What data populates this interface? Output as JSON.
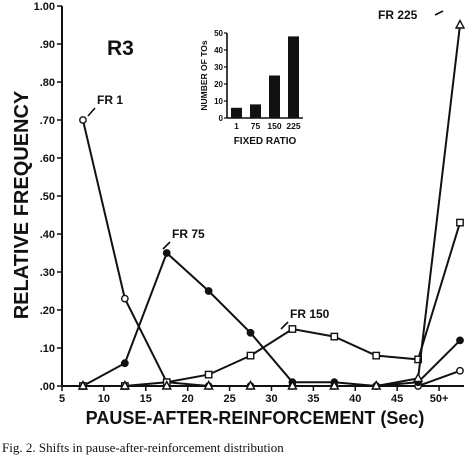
{
  "chart_data": {
    "type": "line",
    "panel_label": "R3",
    "xlabel": "PAUSE-AFTER-REINFORCEMENT (Sec)",
    "ylabel": "RELATIVE FREQUENCY",
    "xlim": [
      5,
      52.5
    ],
    "ylim": [
      0,
      1.0
    ],
    "x_ticks": [
      {
        "value": 5,
        "label": "5"
      },
      {
        "value": 10,
        "label": "10"
      },
      {
        "value": 15,
        "label": "15"
      },
      {
        "value": 20,
        "label": "20"
      },
      {
        "value": 25,
        "label": "25"
      },
      {
        "value": 30,
        "label": "30"
      },
      {
        "value": 35,
        "label": "35"
      },
      {
        "value": 40,
        "label": "40"
      },
      {
        "value": 45,
        "label": "45"
      },
      {
        "value": 50,
        "label": "50+"
      }
    ],
    "y_ticks": [
      {
        "value": 0.0,
        "label": ".00"
      },
      {
        "value": 0.1,
        "label": ".10"
      },
      {
        "value": 0.2,
        "label": ".20"
      },
      {
        "value": 0.3,
        "label": ".30"
      },
      {
        "value": 0.4,
        "label": ".40"
      },
      {
        "value": 0.5,
        "label": ".50"
      },
      {
        "value": 0.6,
        "label": ".60"
      },
      {
        "value": 0.7,
        "label": ".70"
      },
      {
        "value": 0.8,
        "label": ".80"
      },
      {
        "value": 0.9,
        "label": ".90"
      },
      {
        "value": 1.0,
        "label": "1.00"
      }
    ],
    "x": [
      7.5,
      12.5,
      17.5,
      22.5,
      27.5,
      32.5,
      37.5,
      42.5,
      47.5,
      52.5
    ],
    "series": [
      {
        "name": "FR 1",
        "marker": "circle-open",
        "values": [
          0.7,
          0.23,
          0.01,
          0.0,
          0.0,
          0.0,
          0.0,
          0.0,
          0.0,
          0.04
        ]
      },
      {
        "name": "FR 75",
        "marker": "circle-filled",
        "values": [
          0.0,
          0.06,
          0.35,
          0.25,
          0.14,
          0.01,
          0.01,
          0.0,
          0.01,
          0.12
        ]
      },
      {
        "name": "FR 150",
        "marker": "square-open",
        "values": [
          0.0,
          0.0,
          0.01,
          0.03,
          0.08,
          0.15,
          0.13,
          0.08,
          0.07,
          0.43
        ]
      },
      {
        "name": "FR 225",
        "marker": "triangle-open",
        "values": [
          0.0,
          0.0,
          0.0,
          0.0,
          0.0,
          0.0,
          0.0,
          0.0,
          0.02,
          0.95
        ]
      }
    ],
    "annotations": [
      {
        "text": "FR 1",
        "series": "FR 1"
      },
      {
        "text": "FR 75",
        "series": "FR 75"
      },
      {
        "text": "FR 150",
        "series": "FR 150"
      },
      {
        "text": "FR 225",
        "series": "FR 225"
      }
    ],
    "inset": {
      "type": "bar",
      "categories": [
        "1",
        "75",
        "150",
        "225"
      ],
      "values": [
        6,
        8,
        25,
        48
      ],
      "ylabel": "NUMBER OF TOs",
      "xlabel": "FIXED RATIO",
      "ylim": [
        0,
        50
      ],
      "y_ticks": [
        "0",
        "10",
        "20",
        "30",
        "40",
        "50"
      ]
    }
  },
  "caption_fragment": "Fig. 2. Shifts in pause-after-reinforcement distribution"
}
